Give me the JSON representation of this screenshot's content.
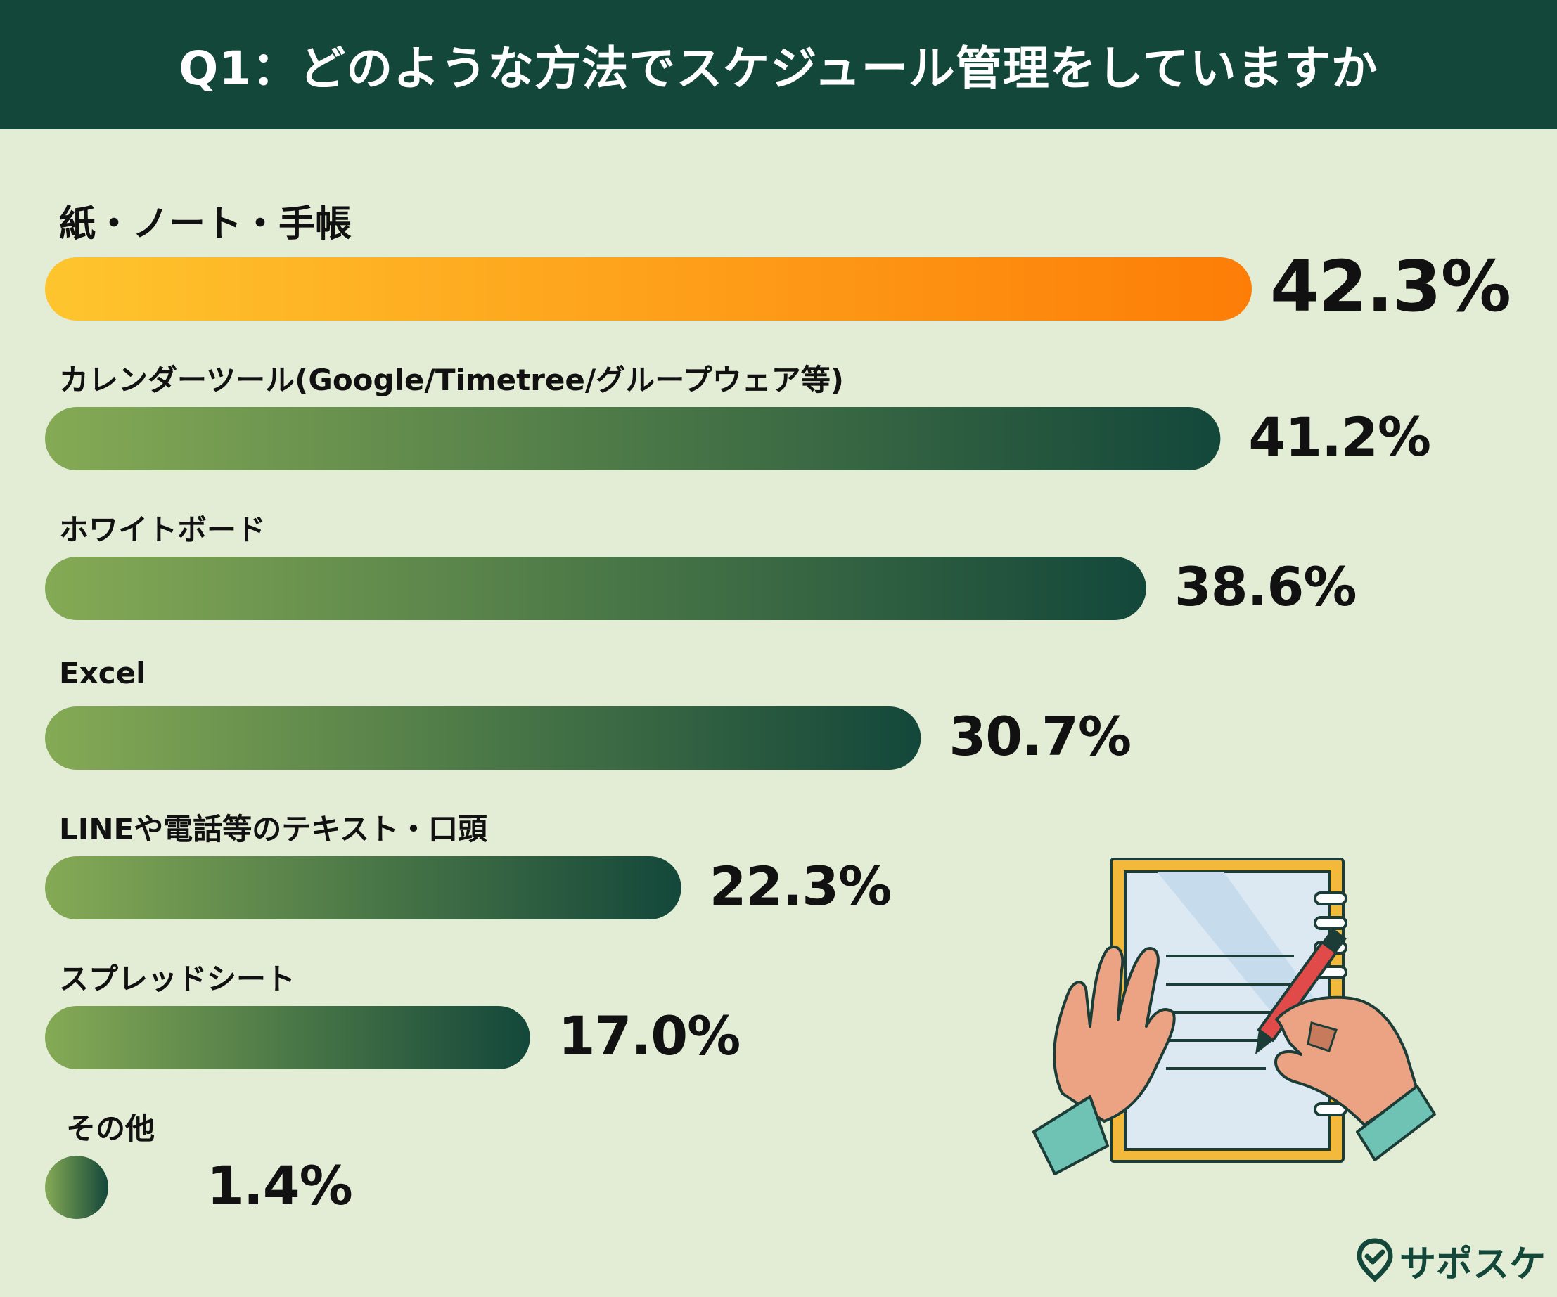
{
  "header": {
    "title": "Q1：どのような方法でスケジュール管理をしていますか"
  },
  "chart_data": {
    "type": "bar",
    "orientation": "horizontal",
    "title": "Q1：どのような方法でスケジュール管理をしていますか",
    "categories": [
      "紙・ノート・手帳",
      "カレンダーツール(Google/Timetree/グループウェア等)",
      "ホワイトボード",
      "Excel",
      "LINEや電話等のテキスト・口頭",
      "スプレッドシート",
      "その他"
    ],
    "values": [
      42.3,
      41.2,
      38.6,
      30.7,
      22.3,
      17.0,
      1.4
    ],
    "value_labels": [
      "42.3%",
      "41.2%",
      "38.6%",
      "30.7%",
      "22.3%",
      "17.0%",
      "1.4%"
    ],
    "unit": "%",
    "highlight_index": 0,
    "colors": {
      "highlight_start": "#fec52e",
      "highlight_end": "#fd7d07",
      "bar_start": "#85aa55",
      "bar_end": "#13473a"
    }
  },
  "brand": {
    "name": "サポスケ",
    "icon": "pin-check-icon",
    "color": "#13473a"
  }
}
